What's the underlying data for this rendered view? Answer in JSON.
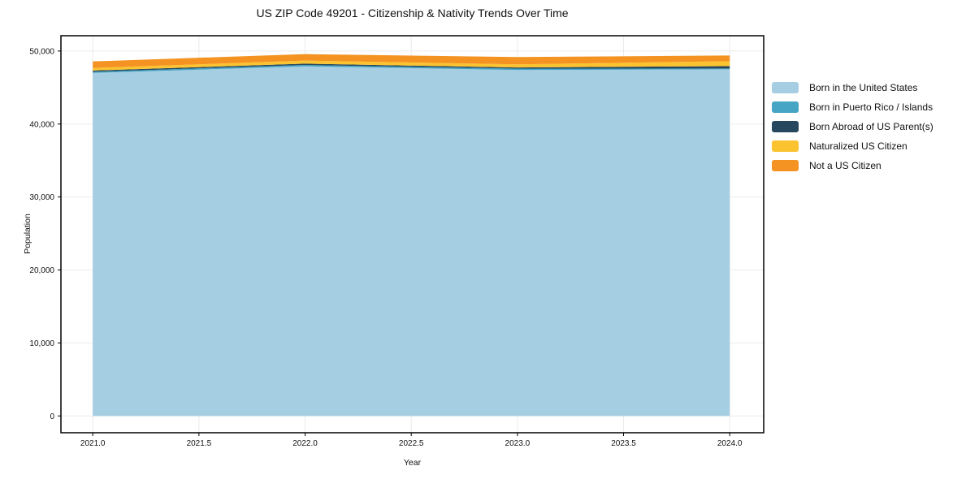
{
  "chart_data": {
    "type": "area",
    "stacked": true,
    "title": "US ZIP Code 49201 - Citizenship & Nativity Trends Over Time",
    "xlabel": "Year",
    "ylabel": "Population",
    "x": [
      2021,
      2022,
      2023,
      2024
    ],
    "series": [
      {
        "name": "Born in the United States",
        "color": "#A6CEE3",
        "values": [
          47000,
          47900,
          47400,
          47500
        ]
      },
      {
        "name": "Born in Puerto Rico / Islands",
        "color": "#46A4C4",
        "values": [
          160,
          190,
          190,
          110
        ]
      },
      {
        "name": "Born Abroad of US Parent(s)",
        "color": "#26485E",
        "values": [
          170,
          180,
          160,
          330
        ]
      },
      {
        "name": "Naturalized US Citizen",
        "color": "#FCC330",
        "values": [
          350,
          420,
          430,
          670
        ]
      },
      {
        "name": "Not a US Citizen",
        "color": "#F49321",
        "values": [
          900,
          890,
          1000,
          780
        ]
      }
    ],
    "xlim": [
      2020.85,
      2024.16
    ],
    "ylim": [
      -2300,
      52100
    ],
    "xticks": [
      2021.0,
      2021.5,
      2022.0,
      2022.5,
      2023.0,
      2023.5,
      2024.0
    ],
    "xtick_labels": [
      "2021.0",
      "2021.5",
      "2022.0",
      "2022.5",
      "2023.0",
      "2023.5",
      "2024.0"
    ],
    "yticks": [
      0,
      10000,
      20000,
      30000,
      40000,
      50000
    ],
    "ytick_labels": [
      "0",
      "10,000",
      "20,000",
      "30,000",
      "40,000",
      "50,000"
    ],
    "grid": true,
    "legend_position": "right-outside",
    "colors": {
      "background": "#ffffff",
      "grid": "#ebebeb",
      "frame": "#000000",
      "text": "#111111"
    }
  }
}
